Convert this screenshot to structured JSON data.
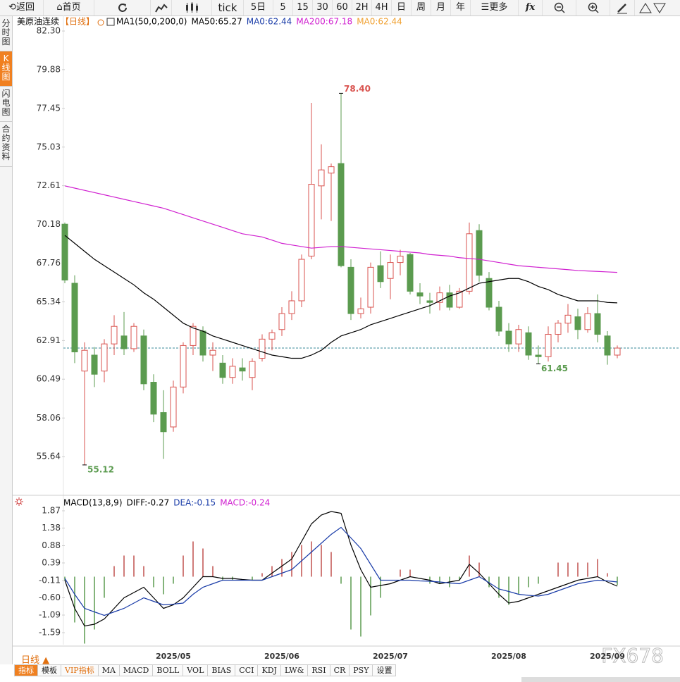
{
  "toolbar": {
    "items": [
      "返回",
      "首页",
      "tick",
      "5日",
      "5",
      "15",
      "30",
      "60",
      "2H",
      "4H",
      "日",
      "周",
      "月",
      "年",
      "更多",
      "fx"
    ]
  },
  "sidebar": {
    "tabs": [
      "分时图",
      "K线图",
      "闪电图",
      "合约资料"
    ]
  },
  "bottom_bar": {
    "period": "日线",
    "tabs": [
      "指标",
      "模板",
      "VIP指标",
      "MA",
      "MACD",
      "BOLL",
      "VOL",
      "BIAS",
      "CCI",
      "KDJ",
      "LW&",
      "RSI",
      "CR",
      "PSY",
      "设置"
    ]
  },
  "watermark": "FX678",
  "chart_data": [
    {
      "type": "candlestick",
      "title": "美原油连续",
      "subtitle": "【日线】",
      "legend": [
        {
          "text": "MA1(50,0,200,0)",
          "color": "#000000"
        },
        {
          "text": "MA50:65.27",
          "color": "#000000"
        },
        {
          "text": "MA0:62.44",
          "color": "#1a3ca8"
        },
        {
          "text": "MA200:67.18",
          "color": "#d020d0"
        },
        {
          "text": "MA0:62.44",
          "color": "#f0a030"
        }
      ],
      "categories": [
        null,
        null,
        null,
        null,
        null,
        null,
        null,
        null,
        null,
        null,
        null,
        "2025/05",
        null,
        null,
        null,
        null,
        null,
        null,
        null,
        null,
        null,
        null,
        "2025/06",
        null,
        null,
        null,
        null,
        null,
        null,
        null,
        null,
        null,
        null,
        "2025/07",
        null,
        null,
        null,
        null,
        null,
        null,
        null,
        null,
        null,
        null,
        null,
        "2025/08",
        null,
        null,
        null,
        null,
        null,
        null,
        null,
        null,
        null,
        "2025/09",
        null
      ],
      "open": [
        70.2,
        66.5,
        61,
        62,
        61,
        62.7,
        63.2,
        62.4,
        63.2,
        60.3,
        58.4,
        57.5,
        60,
        62.6,
        63.5,
        62,
        61.5,
        60.6,
        61.2,
        60.6,
        61.8,
        63,
        63.6,
        64.6,
        65.4,
        68.2,
        72.6,
        73.4,
        74,
        67.5,
        64.6,
        65,
        67.6,
        66.8,
        67.8,
        68.3,
        65.9,
        65.4,
        65.3,
        65.9,
        65,
        66,
        69.8,
        66.8,
        65,
        63.5,
        62.7,
        63.4,
        62,
        61.9,
        63.3,
        64,
        64.4,
        63.6,
        64.6,
        63.2,
        62
      ],
      "high": [
        70.3,
        67,
        62.8,
        62.5,
        63,
        64.5,
        64.7,
        64,
        63.6,
        60.8,
        59.8,
        60.4,
        62.8,
        64,
        63.8,
        62.8,
        62,
        61.8,
        61.8,
        61.8,
        63.3,
        63.6,
        65,
        66,
        68.3,
        77.8,
        75.2,
        74,
        78.4,
        68,
        65.6,
        67.8,
        68.5,
        68.3,
        68.6,
        68.4,
        66.5,
        65.9,
        66.3,
        66.4,
        66.2,
        70.3,
        70.2,
        67.2,
        65.4,
        64,
        63.9,
        63.8,
        62.6,
        63.8,
        64.2,
        65.2,
        64.9,
        65,
        65.8,
        63.5,
        62.6
      ],
      "low": [
        66.5,
        61.5,
        55.12,
        60,
        60.3,
        62,
        62,
        62.2,
        59.8,
        57.8,
        55.5,
        57.2,
        59.6,
        62,
        61.6,
        61,
        60.2,
        60.2,
        60.4,
        59.8,
        61.6,
        62.3,
        63.2,
        64.2,
        65,
        68,
        70.5,
        70.4,
        67.5,
        64.2,
        64.3,
        64.6,
        66.2,
        65.5,
        67,
        65.8,
        65.2,
        64.6,
        64.8,
        64.8,
        64.9,
        65.8,
        66.6,
        64.8,
        63.2,
        62.2,
        62.2,
        61.7,
        61.45,
        61.6,
        62.8,
        63.4,
        63,
        63.4,
        62.8,
        61.4,
        61.8
      ],
      "close": [
        66.7,
        62.2,
        62.3,
        60.8,
        62.7,
        63.8,
        62.4,
        63.8,
        60.2,
        58.3,
        57.2,
        60,
        62.6,
        63.8,
        62,
        62.3,
        60.6,
        61.3,
        61,
        61.6,
        63,
        63.4,
        64.6,
        65.4,
        68,
        72.7,
        73.6,
        73.8,
        67.6,
        64.6,
        64.9,
        67.5,
        66.6,
        67.8,
        68.2,
        66,
        65.7,
        65.3,
        65.9,
        65,
        66,
        69.6,
        67,
        65,
        63.5,
        62.7,
        63.6,
        62,
        61.9,
        63.3,
        64,
        64.5,
        63.6,
        64.6,
        63.3,
        62,
        62.44
      ],
      "up_color": "#d9534f",
      "down_color": "#5b9b4f",
      "series": [
        {
          "color": "#000000",
          "values": [
            69.5,
            69,
            68.5,
            68,
            67.6,
            67.2,
            66.8,
            66.4,
            65.9,
            65.5,
            65,
            64.5,
            64,
            63.7,
            63.5,
            63.2,
            63,
            62.8,
            62.6,
            62.4,
            62.2,
            62,
            61.9,
            61.8,
            61.8,
            62,
            62.3,
            62.8,
            63.2,
            63.4,
            63.6,
            63.9,
            64.1,
            64.3,
            64.5,
            64.7,
            64.9,
            65.1,
            65.4,
            65.7,
            65.9,
            66.2,
            66.5,
            66.6,
            66.7,
            66.8,
            66.8,
            66.6,
            66.3,
            66.1,
            65.8,
            65.6,
            65.4,
            65.4,
            65.4,
            65.3,
            65.27
          ]
        },
        {
          "color": "#d020d0",
          "values": [
            72.6,
            72.46,
            72.32,
            72.18,
            72.04,
            71.9,
            71.76,
            71.62,
            71.48,
            71.34,
            71.2,
            71,
            70.8,
            70.6,
            70.4,
            70.2,
            70,
            69.8,
            69.6,
            69.5,
            69.4,
            69.2,
            69,
            68.9,
            68.8,
            68.7,
            68.75,
            68.8,
            68.8,
            68.75,
            68.7,
            68.65,
            68.6,
            68.55,
            68.5,
            68.45,
            68.4,
            68.3,
            68.25,
            68.2,
            68.1,
            68.05,
            68,
            67.9,
            67.8,
            67.7,
            67.6,
            67.55,
            67.5,
            67.45,
            67.4,
            67.35,
            67.3,
            67.27,
            67.24,
            67.21,
            67.18
          ]
        }
      ],
      "last_price": 62.44,
      "last_price_color": "#3a8a9a",
      "annotations": [
        {
          "value": 78.4,
          "label": "78.40",
          "color": "#d9534f"
        },
        {
          "value": 55.12,
          "label": "55.12",
          "color": "#5b9b4f"
        },
        {
          "value": 61.45,
          "label": "61.45",
          "color": "#5b9b4f"
        }
      ],
      "ylim": [
        53.35,
        83.14
      ],
      "yticks": [
        {
          "value": 82.3,
          "label": "82.30"
        },
        79.88,
        77.45,
        75.03,
        72.61,
        {
          "value": 70.18,
          "label": "70.18"
        },
        67.76,
        65.34,
        62.91,
        60.49,
        58.06,
        55.64
      ],
      "grid": false
    },
    {
      "type": "macd",
      "legend": [
        {
          "text": "MACD(13,8,9)",
          "color": "#000000"
        },
        {
          "text": "DIFF:-0.27",
          "color": "#000000"
        },
        {
          "text": "DEA:-0.15",
          "color": "#1a3ca8"
        },
        {
          "text": "MACD:-0.24",
          "color": "#d020d0"
        }
      ],
      "histogram": [
        -0.1,
        -1.3,
        -1.9,
        -1.5,
        -0.6,
        0.3,
        0.6,
        0.6,
        0.3,
        -0.3,
        -0.5,
        -0.2,
        0.6,
        1,
        0.8,
        0.3,
        -0.1,
        -0.1,
        0,
        -0.1,
        0.1,
        0.3,
        0.5,
        0.7,
        0.9,
        1,
        0.9,
        0.7,
        -0.2,
        -1.5,
        -1.7,
        -1.1,
        -0.6,
        0,
        0.2,
        0.2,
        0,
        -0.2,
        -0.2,
        -0.3,
        -0.1,
        0.6,
        0.4,
        -0.3,
        -0.6,
        -0.8,
        -0.5,
        -0.3,
        -0.2,
        0,
        0.4,
        0.4,
        0.4,
        0.4,
        0.5,
        0.1,
        -0.24
      ],
      "up_color": "#c0504d",
      "down_color": "#5b9b4f",
      "series": [
        {
          "color": "#000000",
          "values": [
            -0.1,
            -0.9,
            -1.4,
            -1.35,
            -1.2,
            -0.9,
            -0.6,
            -0.45,
            -0.3,
            -0.6,
            -0.9,
            -0.8,
            -0.6,
            -0.3,
            0,
            0,
            -0.05,
            -0.05,
            -0.08,
            -0.1,
            -0.1,
            0.1,
            0.3,
            0.5,
            1,
            1.5,
            1.75,
            1.85,
            1.8,
            0.9,
            0.2,
            -0.3,
            -0.25,
            -0.2,
            -0.1,
            0,
            -0.05,
            -0.1,
            -0.2,
            -0.15,
            -0.1,
            0.35,
            0.1,
            -0.2,
            -0.5,
            -0.75,
            -0.7,
            -0.6,
            -0.5,
            -0.4,
            -0.3,
            -0.2,
            -0.1,
            -0.05,
            0,
            -0.15,
            -0.27
          ]
        },
        {
          "color": "#1a3ca8",
          "values": [
            -0.05,
            -0.5,
            -0.9,
            -1,
            -1.1,
            -1,
            -0.9,
            -0.75,
            -0.6,
            -0.7,
            -0.8,
            -0.78,
            -0.75,
            -0.5,
            -0.3,
            -0.2,
            -0.1,
            -0.1,
            -0.1,
            -0.1,
            -0.1,
            0,
            0.1,
            0.2,
            0.45,
            0.7,
            0.95,
            1.2,
            1.4,
            1.1,
            0.8,
            0.35,
            -0.1,
            -0.1,
            -0.1,
            -0.1,
            -0.12,
            -0.13,
            -0.15,
            -0.18,
            -0.2,
            -0.1,
            0,
            -0.17,
            -0.35,
            -0.42,
            -0.5,
            -0.53,
            -0.55,
            -0.5,
            -0.4,
            -0.3,
            -0.2,
            -0.15,
            -0.1,
            -0.12,
            -0.15
          ]
        }
      ],
      "ylim": [
        -1.93,
        2.27
      ],
      "yticks": [
        1.87,
        1.38,
        0.88,
        0.39,
        -0.11,
        {
          "value": -0.6,
          "label": "-0.60"
        },
        -1.09,
        -1.59
      ]
    }
  ]
}
